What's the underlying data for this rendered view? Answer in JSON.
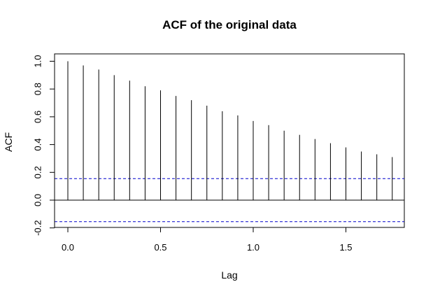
{
  "chart_data": {
    "type": "bar",
    "title": "ACF of the original data",
    "xlabel": "Lag",
    "ylabel": "ACF",
    "xlim": [
      0,
      1.75
    ],
    "ylim": [
      -0.2,
      1.0
    ],
    "x_ticks": [
      "0.0",
      "0.5",
      "1.0",
      "1.5"
    ],
    "y_ticks": [
      "-0.2",
      "0.0",
      "0.2",
      "0.4",
      "0.6",
      "0.8",
      "1.0"
    ],
    "grid": false,
    "lags": [
      0,
      0.0833,
      0.1667,
      0.25,
      0.3333,
      0.4167,
      0.5,
      0.5833,
      0.6667,
      0.75,
      0.8333,
      0.9167,
      1.0,
      1.0833,
      1.1667,
      1.25,
      1.3333,
      1.4167,
      1.5,
      1.5833,
      1.6667,
      1.75
    ],
    "values": [
      1.0,
      0.97,
      0.94,
      0.9,
      0.86,
      0.82,
      0.79,
      0.75,
      0.72,
      0.68,
      0.64,
      0.61,
      0.57,
      0.54,
      0.5,
      0.47,
      0.44,
      0.41,
      0.38,
      0.35,
      0.33,
      0.31
    ],
    "confidence_bounds": [
      0.155,
      -0.155
    ],
    "colors": {
      "bars": "#000000",
      "confidence": "#0000cc",
      "zero_line": "#000000"
    }
  }
}
